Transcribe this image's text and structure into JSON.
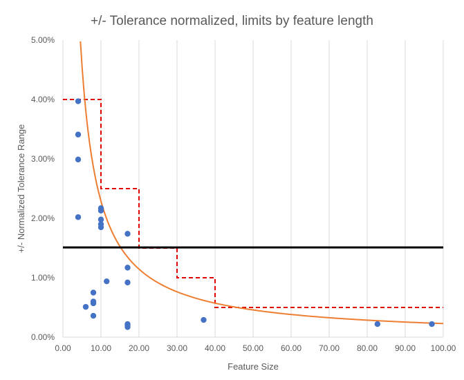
{
  "chart_data": {
    "type": "scatter",
    "title": "+/- Tolerance normalized, limits by feature length",
    "xlabel": "Feature Size",
    "ylabel": "+/- Normalized Tolerance Range",
    "xlim": [
      0,
      100
    ],
    "ylim": [
      0,
      0.05
    ],
    "x_ticks": [
      0,
      10,
      20,
      30,
      40,
      50,
      60,
      70,
      80,
      90,
      100
    ],
    "x_tick_labels": [
      "0.00",
      "10.00",
      "20.00",
      "30.00",
      "40.00",
      "50.00",
      "60.00",
      "70.00",
      "80.00",
      "90.00",
      "100.00"
    ],
    "y_ticks": [
      0,
      0.01,
      0.02,
      0.03,
      0.04,
      0.05
    ],
    "y_tick_labels": [
      "0.00%",
      "1.00%",
      "2.00%",
      "3.00%",
      "4.00%",
      "5.00%"
    ],
    "grid": {
      "vertical": true,
      "horizontal": false
    },
    "legend": "none",
    "colors": {
      "points": "#4472c4",
      "curve": "#ed7d31",
      "limits": "#e00000",
      "reference_line": "#000000",
      "axis": "#d9d9d9",
      "text": "#595959"
    },
    "points": [
      {
        "x": 4,
        "y": 0.0397
      },
      {
        "x": 4,
        "y": 0.0341
      },
      {
        "x": 4,
        "y": 0.0299
      },
      {
        "x": 4,
        "y": 0.0202
      },
      {
        "x": 6,
        "y": 0.0051
      },
      {
        "x": 8,
        "y": 0.0075
      },
      {
        "x": 8,
        "y": 0.006
      },
      {
        "x": 8,
        "y": 0.0057
      },
      {
        "x": 8,
        "y": 0.0036
      },
      {
        "x": 10,
        "y": 0.0217
      },
      {
        "x": 10,
        "y": 0.0213
      },
      {
        "x": 10,
        "y": 0.0198
      },
      {
        "x": 10,
        "y": 0.019
      },
      {
        "x": 10,
        "y": 0.0185
      },
      {
        "x": 11.5,
        "y": 0.0094
      },
      {
        "x": 17,
        "y": 0.0174
      },
      {
        "x": 17,
        "y": 0.0117
      },
      {
        "x": 17,
        "y": 0.0092
      },
      {
        "x": 17,
        "y": 0.0022
      },
      {
        "x": 17,
        "y": 0.002
      },
      {
        "x": 17,
        "y": 0.0017
      },
      {
        "x": 37,
        "y": 0.0029
      },
      {
        "x": 82.7,
        "y": 0.0022
      },
      {
        "x": 97,
        "y": 0.0022
      }
    ],
    "trend_curve": {
      "type": "power",
      "formula": "y = a / x",
      "a": 0.229,
      "x_range": [
        4.6,
        100
      ]
    },
    "limit_steps": [
      {
        "x_start": 0,
        "x_end": 10,
        "y": 0.04
      },
      {
        "x_start": 10,
        "x_end": 20,
        "y": 0.025
      },
      {
        "x_start": 20,
        "x_end": 30,
        "y": 0.015
      },
      {
        "x_start": 30,
        "x_end": 40,
        "y": 0.01
      },
      {
        "x_start": 40,
        "x_end": 100,
        "y": 0.005
      }
    ],
    "reference_line": {
      "y": 0.0151
    }
  }
}
